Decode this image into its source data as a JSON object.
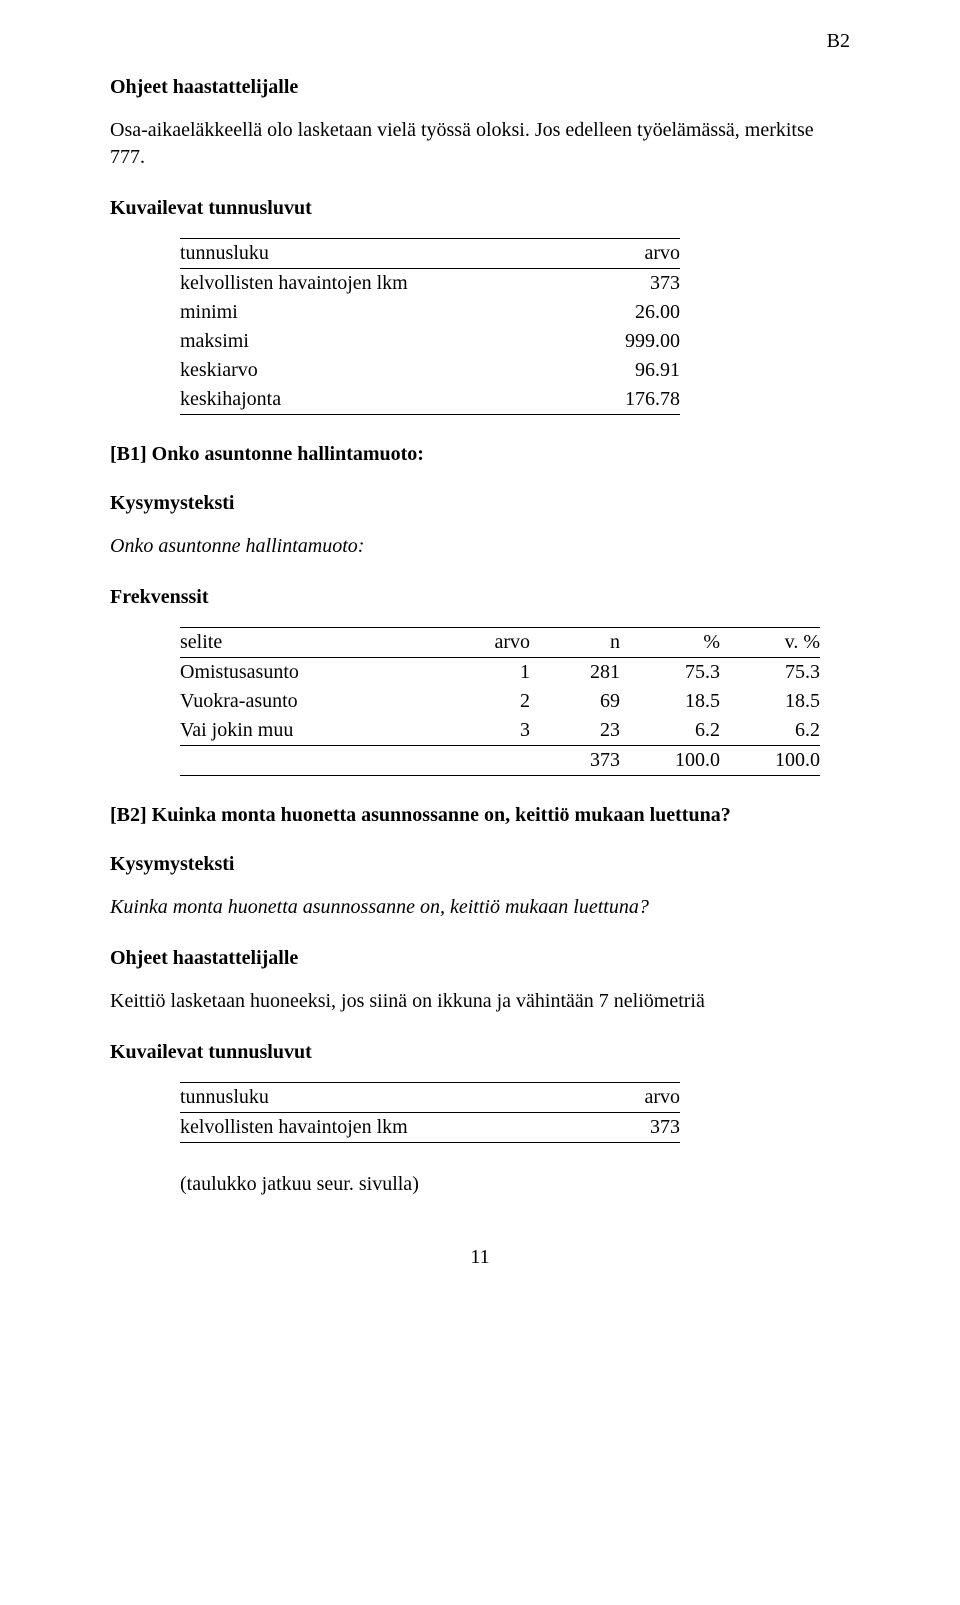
{
  "cornerLabel": "B2",
  "headings": {
    "ohjeet": "Ohjeet haastattelijalle",
    "kuvailevat": "Kuvailevat tunnusluvut",
    "b1": "[B1] Onko asuntonne hallintamuoto:",
    "kysymysteksti": "Kysymysteksti",
    "frekvenssit": "Frekvenssit",
    "b2": "[B2] Kuinka monta huonetta asunnossanne on, keittiö mukaan luettuna?"
  },
  "bodyText": {
    "ohjeet1": "Osa-aikaeläkkeellä olo lasketaan vielä työssä oloksi. Jos edelleen työelämässä, merkitse 777.",
    "kysymys1": "Onko asuntonne hallintamuoto:",
    "kysymys2": "Kuinka monta huonetta asunnossanne on, keittiö mukaan luettuna?",
    "ohjeet2": "Keittiö lasketaan huoneeksi, jos siinä on ikkuna ja vähintään 7 neliömetriä",
    "continuation": "(taulukko jatkuu seur. sivulla)"
  },
  "statsTable1": {
    "headers": {
      "label": "tunnusluku",
      "value": "arvo"
    },
    "rows": [
      {
        "label": "kelvollisten havaintojen lkm",
        "value": "373"
      },
      {
        "label": "minimi",
        "value": "26.00"
      },
      {
        "label": "maksimi",
        "value": "999.00"
      },
      {
        "label": "keskiarvo",
        "value": "96.91"
      },
      {
        "label": "keskihajonta",
        "value": "176.78"
      }
    ]
  },
  "freqTable": {
    "headers": {
      "selite": "selite",
      "arvo": "arvo",
      "n": "n",
      "pct": "%",
      "vpct": "v. %"
    },
    "rows": [
      {
        "selite": "Omistusasunto",
        "arvo": "1",
        "n": "281",
        "pct": "75.3",
        "vpct": "75.3"
      },
      {
        "selite": "Vuokra-asunto",
        "arvo": "2",
        "n": "69",
        "pct": "18.5",
        "vpct": "18.5"
      },
      {
        "selite": "Vai jokin muu",
        "arvo": "3",
        "n": "23",
        "pct": "6.2",
        "vpct": "6.2"
      }
    ],
    "total": {
      "n": "373",
      "pct": "100.0",
      "vpct": "100.0"
    }
  },
  "statsTable2": {
    "headers": {
      "label": "tunnusluku",
      "value": "arvo"
    },
    "rows": [
      {
        "label": "kelvollisten havaintojen lkm",
        "value": "373"
      }
    ]
  },
  "pageNumber": "11"
}
